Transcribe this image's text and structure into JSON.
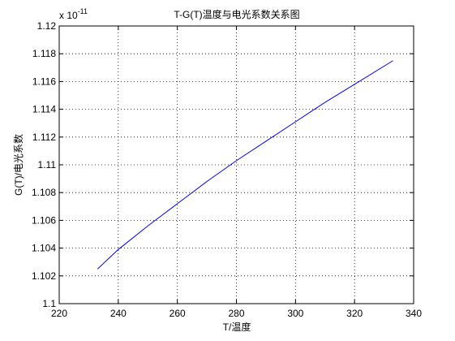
{
  "chart_data": {
    "type": "line",
    "title": "T-G(T)温度与电光系数关系图",
    "xlabel": "T/温度",
    "ylabel": "G(T)/电光系数",
    "xlim": [
      220,
      340
    ],
    "ylim": [
      1.1,
      1.12
    ],
    "y_exponent_label": "x 10",
    "y_exponent_power": "-11",
    "xticks": [
      220,
      240,
      260,
      280,
      300,
      320,
      340
    ],
    "xtick_labels": [
      "220",
      "240",
      "260",
      "280",
      "300",
      "320",
      "340"
    ],
    "yticks": [
      1.1,
      1.102,
      1.104,
      1.106,
      1.108,
      1.11,
      1.112,
      1.114,
      1.116,
      1.118,
      1.12
    ],
    "ytick_labels": [
      "1.1",
      "1.102",
      "1.104",
      "1.106",
      "1.108",
      "1.11",
      "1.112",
      "1.114",
      "1.116",
      "1.118",
      "1.12"
    ],
    "grid": true,
    "series": [
      {
        "color": "#0000ff",
        "x": [
          233,
          240,
          250,
          260,
          270,
          280,
          290,
          300,
          310,
          320,
          333
        ],
        "y": [
          1.1025,
          1.1039,
          1.1056,
          1.1072,
          1.1088,
          1.1103,
          1.1117,
          1.1131,
          1.1145,
          1.1158,
          1.1175
        ]
      }
    ]
  }
}
